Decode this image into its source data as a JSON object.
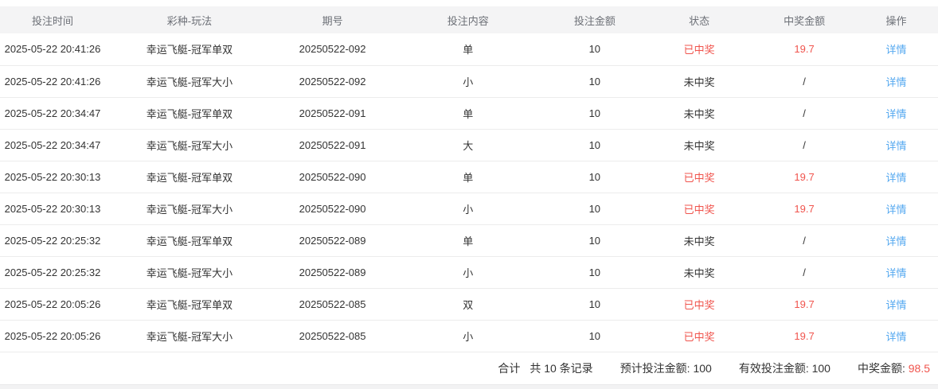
{
  "colors": {
    "red": "#f0544d",
    "blue": "#54a8f0",
    "headerBg": "#f4f4f5",
    "headerText": "#6d7077",
    "bodyText": "#333333",
    "border": "#ececec",
    "stripBg": "#f2f2f3"
  },
  "table": {
    "columns": [
      "投注时间",
      "彩种-玩法",
      "期号",
      "投注内容",
      "投注金额",
      "状态",
      "中奖金额",
      "操作"
    ],
    "rows": [
      {
        "time": "2025-05-22 20:41:26",
        "game": "幸运飞艇-冠军单双",
        "issue": "20250522-092",
        "content": "单",
        "amount": "10",
        "status": "已中奖",
        "won": true,
        "prize": "19.7",
        "action": "详情"
      },
      {
        "time": "2025-05-22 20:41:26",
        "game": "幸运飞艇-冠军大小",
        "issue": "20250522-092",
        "content": "小",
        "amount": "10",
        "status": "未中奖",
        "won": false,
        "prize": "/",
        "action": "详情"
      },
      {
        "time": "2025-05-22 20:34:47",
        "game": "幸运飞艇-冠军单双",
        "issue": "20250522-091",
        "content": "单",
        "amount": "10",
        "status": "未中奖",
        "won": false,
        "prize": "/",
        "action": "详情"
      },
      {
        "time": "2025-05-22 20:34:47",
        "game": "幸运飞艇-冠军大小",
        "issue": "20250522-091",
        "content": "大",
        "amount": "10",
        "status": "未中奖",
        "won": false,
        "prize": "/",
        "action": "详情"
      },
      {
        "time": "2025-05-22 20:30:13",
        "game": "幸运飞艇-冠军单双",
        "issue": "20250522-090",
        "content": "单",
        "amount": "10",
        "status": "已中奖",
        "won": true,
        "prize": "19.7",
        "action": "详情"
      },
      {
        "time": "2025-05-22 20:30:13",
        "game": "幸运飞艇-冠军大小",
        "issue": "20250522-090",
        "content": "小",
        "amount": "10",
        "status": "已中奖",
        "won": true,
        "prize": "19.7",
        "action": "详情"
      },
      {
        "time": "2025-05-22 20:25:32",
        "game": "幸运飞艇-冠军单双",
        "issue": "20250522-089",
        "content": "单",
        "amount": "10",
        "status": "未中奖",
        "won": false,
        "prize": "/",
        "action": "详情"
      },
      {
        "time": "2025-05-22 20:25:32",
        "game": "幸运飞艇-冠军大小",
        "issue": "20250522-089",
        "content": "小",
        "amount": "10",
        "status": "未中奖",
        "won": false,
        "prize": "/",
        "action": "详情"
      },
      {
        "time": "2025-05-22 20:05:26",
        "game": "幸运飞艇-冠军单双",
        "issue": "20250522-085",
        "content": "双",
        "amount": "10",
        "status": "已中奖",
        "won": true,
        "prize": "19.7",
        "action": "详情"
      },
      {
        "time": "2025-05-22 20:05:26",
        "game": "幸运飞艇-冠军大小",
        "issue": "20250522-085",
        "content": "小",
        "amount": "10",
        "status": "已中奖",
        "won": true,
        "prize": "19.7",
        "action": "详情"
      }
    ]
  },
  "footer": {
    "total_prefix": "合计",
    "total_count": "共 10 条记录",
    "expected_label": "预计投注金额:",
    "expected_value": "100",
    "valid_label": "有效投注金额:",
    "valid_value": "100",
    "prize_label": "中奖金额:",
    "prize_value": "98.5"
  }
}
